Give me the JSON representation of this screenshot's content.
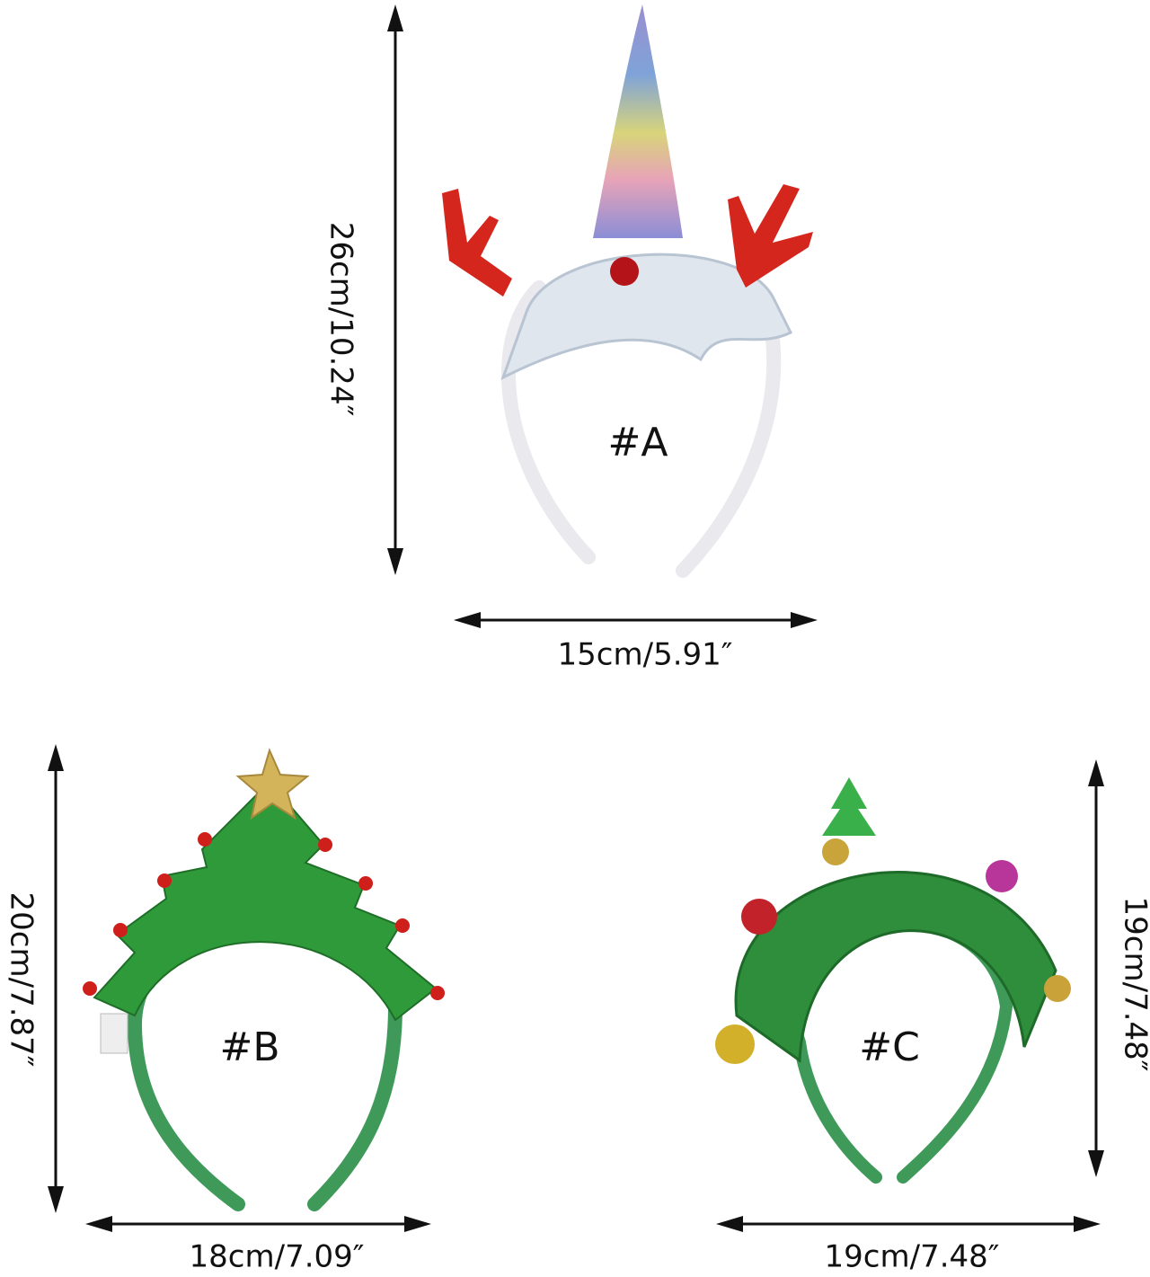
{
  "items": [
    {
      "label": "#A",
      "height": "26cm/10.24″",
      "width": "15cm/5.91″"
    },
    {
      "label": "#B",
      "height": "20cm/7.87″",
      "width": "18cm/7.09″"
    },
    {
      "label": "#C",
      "height": "19cm/7.48″",
      "width": "19cm/7.48″"
    }
  ]
}
